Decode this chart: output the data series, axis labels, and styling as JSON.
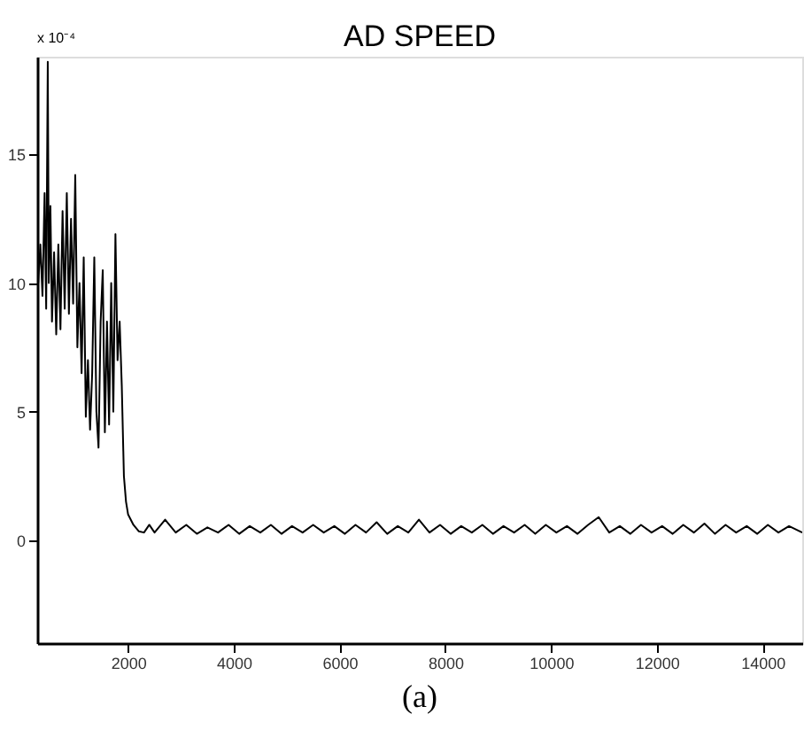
{
  "chart_data": {
    "type": "line",
    "title": "AD SPEED",
    "annotations": [
      "x 10⁻⁴",
      "(a)"
    ],
    "x": [
      300,
      340,
      380,
      420,
      450,
      480,
      500,
      530,
      560,
      600,
      640,
      680,
      720,
      760,
      800,
      840,
      880,
      920,
      960,
      1000,
      1040,
      1080,
      1120,
      1160,
      1200,
      1240,
      1280,
      1320,
      1360,
      1400,
      1440,
      1480,
      1520,
      1560,
      1600,
      1640,
      1680,
      1720,
      1760,
      1800,
      1840,
      1880,
      1920,
      1960,
      2000,
      2100,
      2200,
      2300,
      2400,
      2500,
      2700,
      2900,
      3100,
      3300,
      3500,
      3700,
      3900,
      4100,
      4300,
      4500,
      4700,
      4900,
      5100,
      5300,
      5500,
      5700,
      5900,
      6100,
      6300,
      6500,
      6700,
      6900,
      7100,
      7300,
      7500,
      7700,
      7900,
      8100,
      8300,
      8500,
      8700,
      8900,
      9100,
      9300,
      9500,
      9700,
      9900,
      10100,
      10300,
      10500,
      10700,
      10900,
      11100,
      11300,
      11500,
      11700,
      11900,
      12100,
      12300,
      12500,
      12700,
      12900,
      13100,
      13300,
      13500,
      13700,
      13900,
      14100,
      14300,
      14500,
      14750
    ],
    "series": [
      {
        "color": "#000000",
        "values": [
          10,
          11.5,
          9.5,
          13.5,
          9,
          18.6,
          10,
          13,
          8.5,
          11.2,
          8,
          11.5,
          8.2,
          12.8,
          9,
          13.5,
          8.8,
          12.5,
          9.2,
          14.2,
          7.5,
          10,
          6.5,
          11,
          4.8,
          7,
          4.3,
          6.5,
          11,
          5,
          3.6,
          8.5,
          10.5,
          4.2,
          8.5,
          4.5,
          10,
          5,
          11.9,
          7,
          8.5,
          6,
          2.5,
          1.5,
          1,
          0.6,
          0.35,
          0.3,
          0.6,
          0.3,
          0.8,
          0.3,
          0.6,
          0.25,
          0.5,
          0.3,
          0.6,
          0.25,
          0.55,
          0.3,
          0.6,
          0.25,
          0.55,
          0.3,
          0.6,
          0.3,
          0.55,
          0.25,
          0.6,
          0.3,
          0.7,
          0.25,
          0.55,
          0.3,
          0.8,
          0.3,
          0.6,
          0.25,
          0.55,
          0.3,
          0.6,
          0.25,
          0.55,
          0.3,
          0.6,
          0.25,
          0.6,
          0.3,
          0.55,
          0.25,
          0.6,
          0.9,
          0.3,
          0.55,
          0.25,
          0.6,
          0.3,
          0.55,
          0.25,
          0.6,
          0.3,
          0.65,
          0.25,
          0.6,
          0.3,
          0.55,
          0.25,
          0.6,
          0.3,
          0.55,
          0.3
        ]
      }
    ],
    "xlim": [
      280,
      14750
    ],
    "xticks": [
      2000,
      4000,
      6000,
      8000,
      10000,
      12000,
      14000
    ],
    "ylim": [
      -4,
      18.8
    ],
    "yticks": [
      0,
      5,
      10,
      15
    ],
    "grid": false,
    "legend": false,
    "marker": "none",
    "line_style": "solid"
  }
}
